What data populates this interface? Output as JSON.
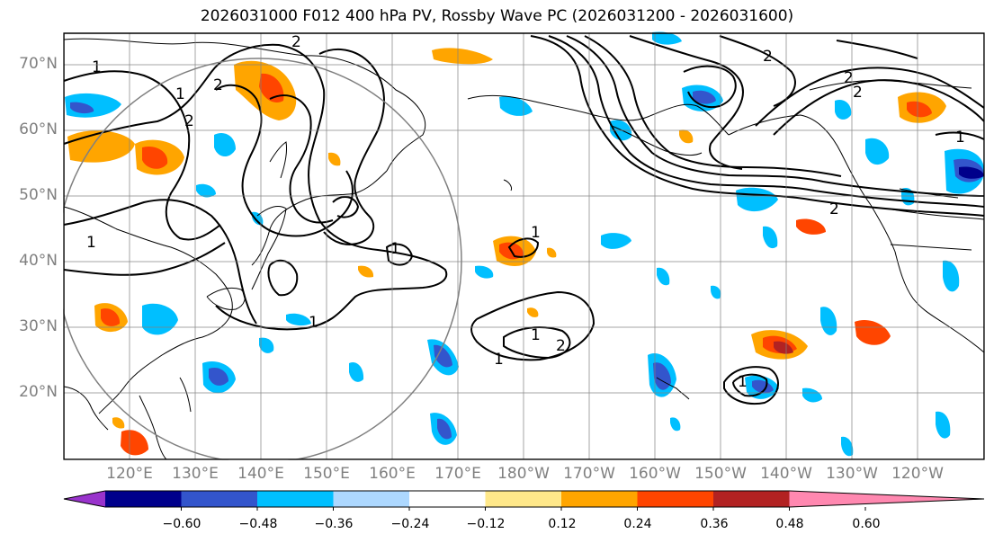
{
  "title": "2026031000 F012 400 hPa PV, Rossby Wave PC (2026031200 - 2026031600)",
  "lat_labels": [
    "70°N",
    "60°N",
    "50°N",
    "40°N",
    "30°N",
    "20°N"
  ],
  "lon_labels": [
    "120°E",
    "130°E",
    "140°E",
    "150°E",
    "160°E",
    "170°E",
    "180°W",
    "170°W",
    "160°W",
    "150°W",
    "140°W",
    "130°W",
    "120°W"
  ],
  "colorbar": {
    "ticks": [
      "−0.60",
      "−0.48",
      "−0.36",
      "−0.24",
      "−0.12",
      "0.12",
      "0.24",
      "0.36",
      "0.48",
      "0.60"
    ],
    "colors": [
      "#9933cc",
      "#00008b",
      "#3355cc",
      "#00bfff",
      "#add8ff",
      "#ffffff",
      "#ffe88a",
      "#ffa500",
      "#ff4500",
      "#b22222",
      "#ff88b0"
    ]
  },
  "contour_labels": [
    "2",
    "1",
    "1",
    "2",
    "1",
    "2",
    "2",
    "2",
    "1",
    "1",
    "1",
    "1",
    "2",
    "1",
    "1",
    "2",
    "2",
    "1"
  ]
}
